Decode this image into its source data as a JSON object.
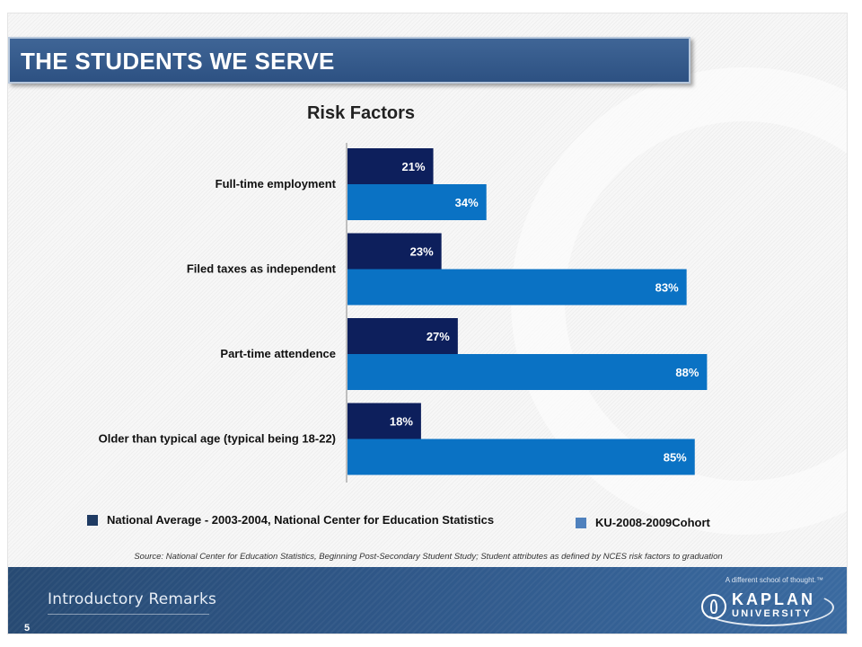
{
  "slide": {
    "title": "THE STUDENTS WE SERVE",
    "source": "Source: National Center for Education Statistics, Beginning Post-Secondary Student Study; Student attributes as defined by NCES risk factors to graduation",
    "page_number": "5",
    "footer_section": "Introductory Remarks",
    "brand": {
      "tagline": "A different school of thought.™",
      "name": "KAPLAN",
      "sub": "UNIVERSITY"
    }
  },
  "chart_data": {
    "type": "bar",
    "orientation": "horizontal",
    "title": "Risk Factors",
    "categories": [
      "Full-time employment",
      "Filed taxes as independent",
      "Part-time attendence",
      "Older than typical age (typical being 18-22)"
    ],
    "series": [
      {
        "name": "National Average - 2003-2004, National Center for Education Statistics",
        "values": [
          21,
          23,
          27,
          18
        ],
        "labels": [
          "21%",
          "23%",
          "27%",
          "18%"
        ],
        "color": "#0d1f5c"
      },
      {
        "name": "KU-2008-2009Cohort",
        "values": [
          34,
          83,
          88,
          85
        ],
        "labels": [
          "34%",
          "83%",
          "88%",
          "85%"
        ],
        "color": "#0a72c4"
      }
    ],
    "xlim": [
      0,
      100
    ],
    "grid": false,
    "legend": "bottom",
    "legend_colors": [
      "#1f3b63",
      "#4f81bd"
    ]
  }
}
